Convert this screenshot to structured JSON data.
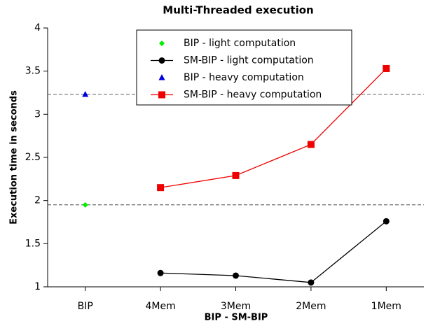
{
  "chart_data": {
    "type": "line",
    "title": "Multi-Threaded execution",
    "x_label": "BIP  -  SM-BIP",
    "y_label": "Execution time in seconds",
    "categories": [
      "BIP",
      "4Mem",
      "3Mem",
      "2Mem",
      "1Mem"
    ],
    "series": [
      {
        "name": "BIP - light computation",
        "color": "#00ee00",
        "marker": "diamond",
        "values": [
          1.95,
          null,
          null,
          null,
          null
        ]
      },
      {
        "name": "SM-BIP - light computation",
        "color": "#000000",
        "marker": "circle",
        "values": [
          null,
          1.16,
          1.13,
          1.05,
          1.76
        ]
      },
      {
        "name": "BIP - heavy computation",
        "color": "#0000dd",
        "marker": "triangle",
        "values": [
          3.23,
          null,
          null,
          null,
          null
        ]
      },
      {
        "name": "SM-BIP - heavy computation",
        "color": "#ee0000",
        "marker": "square",
        "values": [
          null,
          2.15,
          2.29,
          2.65,
          3.53
        ]
      }
    ],
    "ylim": [
      1,
      4
    ],
    "yticks": [
      1,
      1.5,
      2,
      2.5,
      3,
      3.5,
      4
    ],
    "legend": "top"
  }
}
